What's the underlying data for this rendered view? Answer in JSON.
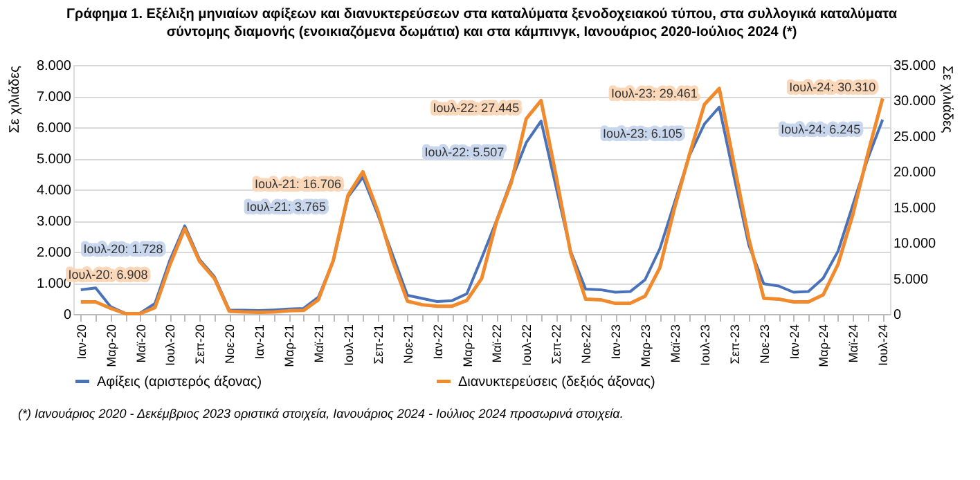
{
  "chart_data": {
    "type": "line",
    "title": "Γράφημα 1. Εξέλιξη μηνιαίων αφίξεων και διανυκτερεύσεων στα καταλύματα ξενοδοχειακού τύπου, στα συλλογικά καταλύματα σύντομης διαμονής (ενοικιαζόμενα δωμάτια) και στα κάμπινγκ, Ιανουάριος 2020-Ιούλιος 2024 (*)",
    "ylabel": "Σε χιλιάδες",
    "y2label": "Σε χιλιάδες",
    "categories": [
      "Ιαν-20",
      null,
      "Μαρ-20",
      null,
      "Μαϊ-20",
      null,
      "Ιουλ-20",
      null,
      "Σεπ-20",
      null,
      "Νοε-20",
      null,
      "Ιαν-21",
      null,
      "Μαρ-21",
      null,
      "Μαϊ-21",
      null,
      "Ιουλ-21",
      null,
      "Σεπ-21",
      null,
      "Νοε-21",
      null,
      "Ιαν-22",
      null,
      "Μαρ-22",
      null,
      "Μαϊ-22",
      null,
      "Ιουλ-22",
      null,
      "Σεπ-22",
      null,
      "Νοε-22",
      null,
      "Ιαν-23",
      null,
      "Μαρ-23",
      null,
      "Μαϊ-23",
      null,
      "Ιουλ-23",
      null,
      "Σεπ-23",
      null,
      "Νοε-23",
      null,
      "Ιαν-24",
      null,
      "Μαρ-24",
      null,
      "Μαϊ-24",
      null,
      "Ιουλ-24"
    ],
    "series": [
      {
        "name": "Αφίξεις (αριστερός άξονας)",
        "color": "#4a72b8",
        "values": [
          780,
          840,
          240,
          20,
          30,
          340,
          1728,
          2830,
          1750,
          1200,
          130,
          120,
          110,
          130,
          160,
          180,
          540,
          1700,
          3765,
          4400,
          3200,
          1900,
          600,
          500,
          400,
          430,
          650,
          1800,
          3000,
          4300,
          5507,
          6200,
          4100,
          2000,
          800,
          780,
          700,
          720,
          1100,
          2100,
          3600,
          5100,
          6105,
          6650,
          4400,
          2200,
          970,
          900,
          700,
          720,
          1150,
          2020,
          3510,
          4990,
          6245
        ],
        "value_labels": [
          null,
          null,
          null,
          null,
          null,
          null,
          "Ιουλ-20: 1.728",
          null,
          null,
          null,
          null,
          null,
          null,
          null,
          null,
          null,
          null,
          null,
          "Ιουλ-21: 3.765",
          null,
          null,
          null,
          null,
          null,
          null,
          null,
          null,
          null,
          null,
          null,
          "Ιουλ-22: 5.507",
          null,
          null,
          null,
          null,
          null,
          null,
          null,
          null,
          null,
          null,
          null,
          "Ιουλ-23: 6.105",
          null,
          null,
          null,
          null,
          null,
          null,
          null,
          null,
          null,
          null,
          null,
          "Ιουλ-24: 6.245"
        ]
      },
      {
        "name": "Διανυκτερεύσεις (δεξιός άξονας)",
        "color": "#f08a2c",
        "axis": "y2",
        "values": [
          1700,
          1700,
          800,
          50,
          50,
          900,
          6908,
          12000,
          7400,
          5000,
          400,
          300,
          250,
          300,
          450,
          500,
          2000,
          7500,
          16706,
          20000,
          14500,
          7500,
          1800,
          1300,
          1100,
          1100,
          1900,
          5000,
          13000,
          18500,
          27445,
          30000,
          19500,
          8500,
          2100,
          2000,
          1500,
          1500,
          2500,
          6500,
          15000,
          22500,
          29461,
          31700,
          21000,
          10500,
          2200,
          2100,
          1700,
          1700,
          2700,
          7000,
          14000,
          22500,
          30310
        ],
        "value_labels": [
          null,
          null,
          null,
          null,
          null,
          null,
          "Ιουλ-20: 6.908",
          null,
          null,
          null,
          null,
          null,
          null,
          null,
          null,
          null,
          null,
          null,
          "Ιουλ-21: 16.706",
          null,
          null,
          null,
          null,
          null,
          null,
          null,
          null,
          null,
          null,
          null,
          "Ιουλ-22: 27.445",
          null,
          null,
          null,
          null,
          null,
          null,
          null,
          null,
          null,
          null,
          null,
          "Ιουλ-23: 29.461",
          null,
          null,
          null,
          null,
          null,
          null,
          null,
          null,
          null,
          null,
          null,
          "Ιουλ-24: 30.310"
        ]
      }
    ],
    "ylim": [
      0,
      8000
    ],
    "yticks": [
      0,
      {
        "value": 1000,
        "label": "1.000"
      },
      {
        "value": 2000,
        "label": "2.000"
      },
      {
        "value": 3000,
        "label": "3.000"
      },
      {
        "value": 4000,
        "label": "4.000"
      },
      {
        "value": 5000,
        "label": "5.000"
      },
      {
        "value": 6000,
        "label": "6.000"
      },
      {
        "value": 7000,
        "label": "7.000"
      },
      {
        "value": 8000,
        "label": "8.000"
      }
    ],
    "y2lim": [
      0,
      35000
    ],
    "y2ticks": [
      0,
      {
        "value": 5000,
        "label": "5.000"
      },
      {
        "value": 10000,
        "label": "10.000"
      },
      {
        "value": 15000,
        "label": "15.000"
      },
      {
        "value": 20000,
        "label": "20.000"
      },
      {
        "value": 25000,
        "label": "25.000"
      },
      {
        "value": 30000,
        "label": "30.000"
      },
      {
        "value": 35000,
        "label": "35.000"
      }
    ],
    "grid": "y",
    "legend": "bottom",
    "marker": "none",
    "line_style": "solid",
    "annotations": [
      "(*) Ιανουάριος 2020 - Δεκέμβριος 2023 οριστικά στοιχεία, Ιανουάριος 2024 - Ιούλιος 2024 προσωρινά στοιχεία."
    ]
  }
}
